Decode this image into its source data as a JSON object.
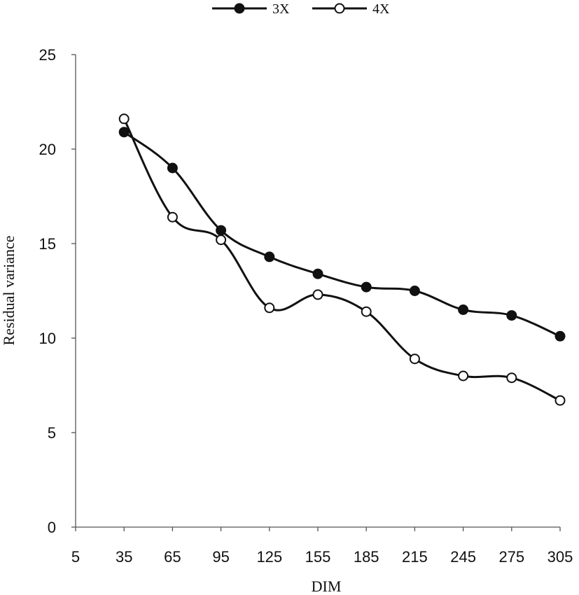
{
  "chart_data": {
    "type": "line",
    "title": "",
    "xlabel": "DIM",
    "ylabel": "Residual variance",
    "x": [
      35,
      65,
      95,
      125,
      155,
      185,
      215,
      245,
      275,
      305
    ],
    "xticks": [
      "5",
      "35",
      "65",
      "95",
      "125",
      "155",
      "185",
      "215",
      "245",
      "275",
      "305"
    ],
    "yticks": [
      "0",
      "5",
      "10",
      "15",
      "20",
      "25"
    ],
    "xlim": [
      5,
      305
    ],
    "ylim": [
      0,
      25
    ],
    "grid": false,
    "legend_position": "top-center",
    "series": [
      {
        "name": "3X",
        "marker": "filled-circle",
        "values": [
          20.9,
          19.0,
          15.7,
          14.3,
          13.4,
          12.7,
          12.5,
          11.5,
          11.2,
          10.1
        ]
      },
      {
        "name": "4X",
        "marker": "open-circle",
        "values": [
          21.6,
          16.4,
          15.2,
          11.6,
          12.3,
          11.4,
          8.9,
          8.0,
          7.9,
          6.7
        ]
      }
    ]
  }
}
